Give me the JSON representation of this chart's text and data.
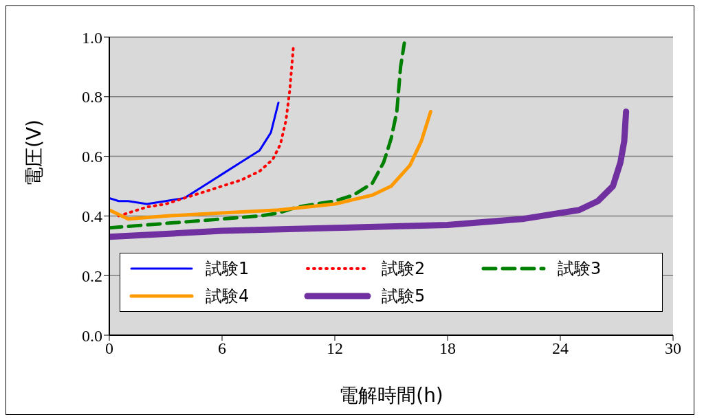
{
  "chart_data": {
    "type": "line",
    "xlabel": "電解時間(h)",
    "ylabel": "電圧(V)",
    "xlim": [
      0,
      30
    ],
    "xticks": [
      0,
      6,
      12,
      18,
      24,
      30
    ],
    "ylim": [
      0,
      1
    ],
    "yticks": [
      {
        "value": 0,
        "label": "0.0"
      },
      {
        "value": 0.2,
        "label": "0.2"
      },
      {
        "value": 0.4,
        "label": "0.4"
      },
      {
        "value": 0.6,
        "label": "0.6"
      },
      {
        "value": 0.8,
        "label": "0.8"
      },
      {
        "value": 1,
        "label": "1.0"
      }
    ],
    "grid": "y",
    "legend": "bottom",
    "marker": "none",
    "series": [
      {
        "name": "試験1",
        "color": "#0000ff",
        "line_style": "solid",
        "x": [
          0,
          0.5,
          1,
          2,
          3,
          4,
          5,
          6,
          7,
          8,
          8.6,
          9
        ],
        "values": [
          0.46,
          0.45,
          0.45,
          0.44,
          0.45,
          0.46,
          0.5,
          0.54,
          0.58,
          0.62,
          0.68,
          0.78
        ]
      },
      {
        "name": "試験2",
        "color": "#ff0000",
        "line_style": "dotted",
        "x": [
          0.5,
          1,
          2,
          3,
          4,
          5,
          6,
          7,
          8,
          8.7,
          9.1,
          9.4,
          9.6,
          9.8
        ],
        "values": [
          0.4,
          0.41,
          0.43,
          0.44,
          0.46,
          0.48,
          0.5,
          0.52,
          0.55,
          0.59,
          0.64,
          0.72,
          0.82,
          0.97
        ]
      },
      {
        "name": "試験3",
        "color": "#008000",
        "line_style": "dashed",
        "x": [
          0,
          2,
          4,
          6,
          8,
          9,
          10,
          12,
          13,
          14,
          14.6,
          15,
          15.3,
          15.5,
          15.7
        ],
        "values": [
          0.36,
          0.37,
          0.38,
          0.39,
          0.4,
          0.41,
          0.43,
          0.45,
          0.47,
          0.51,
          0.58,
          0.66,
          0.75,
          0.9,
          0.98
        ]
      },
      {
        "name": "試験4",
        "color": "#ff9900",
        "line_style": "solid",
        "x": [
          0,
          1,
          3,
          6,
          9,
          12,
          14,
          15,
          16,
          16.6,
          17.1
        ],
        "values": [
          0.42,
          0.39,
          0.4,
          0.41,
          0.42,
          0.44,
          0.47,
          0.5,
          0.57,
          0.65,
          0.75
        ]
      },
      {
        "name": "試験5",
        "color": "#7030a0",
        "line_style": "solid",
        "x": [
          0,
          6,
          12,
          18,
          22,
          25,
          26,
          26.8,
          27.2,
          27.4,
          27.5
        ],
        "values": [
          0.33,
          0.35,
          0.36,
          0.37,
          0.39,
          0.42,
          0.45,
          0.5,
          0.58,
          0.65,
          0.75
        ]
      }
    ]
  }
}
